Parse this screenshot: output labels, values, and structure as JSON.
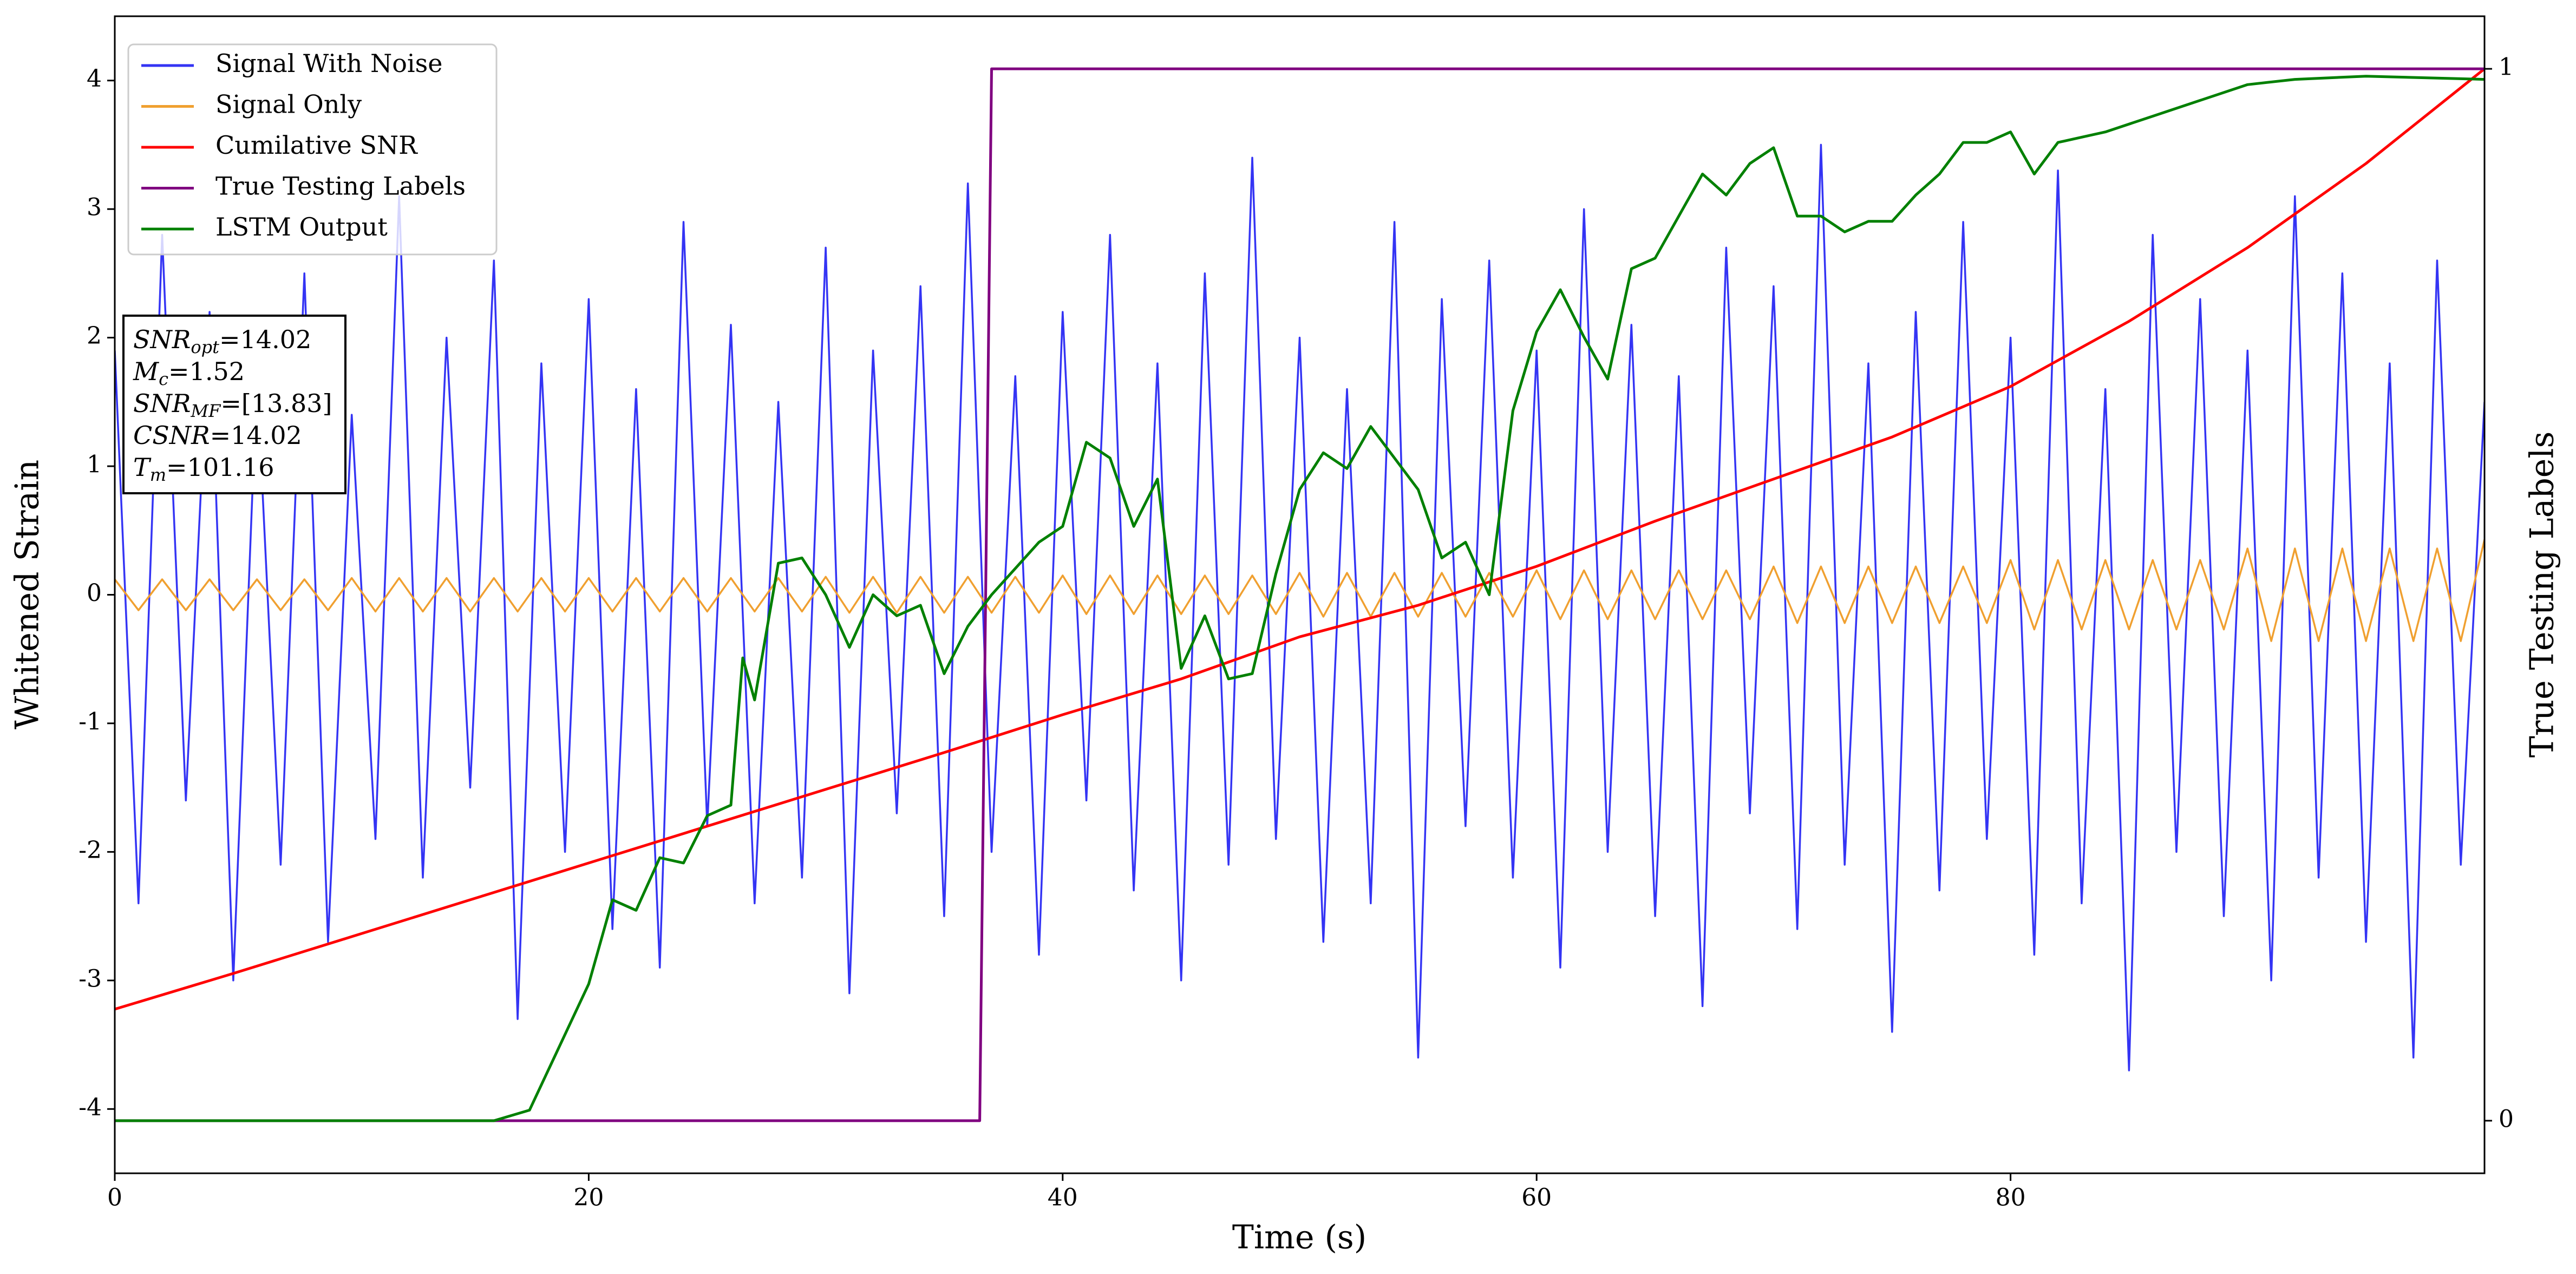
{
  "chart_data": {
    "type": "line",
    "xlabel": "Time (s)",
    "ylabel": "Whitened Strain",
    "y2label": "True Testing Labels",
    "xlim": [
      0,
      100
    ],
    "ylim": [
      -4.5,
      4.5
    ],
    "y2lim": [
      -0.05,
      1.05
    ],
    "xticks": [
      0,
      20,
      40,
      60,
      80
    ],
    "yticks": [
      -4,
      -3,
      -2,
      -1,
      0,
      1,
      2,
      3,
      4
    ],
    "y2ticks": [
      0,
      1
    ],
    "grid": false,
    "legend": "upper left",
    "x": [
      0,
      1,
      2,
      3,
      4,
      5,
      6,
      7,
      8,
      9,
      10,
      11,
      12,
      13,
      14,
      15,
      16,
      17,
      18,
      19,
      20,
      21,
      22,
      23,
      24,
      25,
      26,
      27,
      28,
      29,
      30,
      31,
      32,
      33,
      34,
      35,
      36,
      37,
      38,
      39,
      40,
      41,
      42,
      43,
      44,
      45,
      46,
      47,
      48,
      49,
      50,
      51,
      52,
      53,
      54,
      55,
      56,
      57,
      58,
      59,
      60,
      61,
      62,
      63,
      64,
      65,
      66,
      67,
      68,
      69,
      70,
      71,
      72,
      73,
      74,
      75,
      76,
      77,
      78,
      79,
      80,
      81,
      82,
      83,
      84,
      85,
      86,
      87,
      88,
      89,
      90,
      91,
      92,
      93,
      94,
      95,
      96,
      97,
      98,
      99,
      100
    ],
    "series": [
      {
        "name": "Signal With Noise",
        "color": "#3434f4",
        "values": [
          1.9,
          -2.4,
          2.8,
          -1.6,
          2.2,
          -3.0,
          1.7,
          -2.1,
          2.5,
          -2.7,
          1.4,
          -1.9,
          3.1,
          -2.2,
          2.0,
          -1.5,
          2.6,
          -3.3,
          1.8,
          -2.0,
          2.3,
          -2.6,
          1.6,
          -2.9,
          2.9,
          -1.8,
          2.1,
          -2.4,
          1.5,
          -2.2,
          2.7,
          -3.1,
          1.9,
          -1.7,
          2.4,
          -2.5,
          3.2,
          -2.0,
          1.7,
          -2.8,
          2.2,
          -1.6,
          2.8,
          -2.3,
          1.8,
          -3.0,
          2.5,
          -2.1,
          3.4,
          -1.9,
          2.0,
          -2.7,
          1.6,
          -2.4,
          2.9,
          -3.6,
          2.3,
          -1.8,
          2.6,
          -2.2,
          1.9,
          -2.9,
          3.0,
          -2.0,
          2.1,
          -2.5,
          1.7,
          -3.2,
          2.7,
          -1.7,
          2.4,
          -2.6,
          3.5,
          -2.1,
          1.8,
          -3.4,
          2.2,
          -2.3,
          2.9,
          -1.9,
          2.0,
          -2.8,
          3.3,
          -2.4,
          1.6,
          -3.7,
          2.8,
          -2.0,
          2.3,
          -2.5,
          1.9,
          -3.0,
          3.1,
          -2.2,
          2.5,
          -2.7,
          1.8,
          -3.6,
          2.6,
          -2.1,
          1.5
        ]
      },
      {
        "name": "Signal Only",
        "color": "#f0a030",
        "values": [
          0.12,
          -0.12,
          0.12,
          -0.12,
          0.12,
          -0.12,
          0.12,
          -0.12,
          0.12,
          -0.12,
          0.13,
          -0.13,
          0.13,
          -0.13,
          0.13,
          -0.13,
          0.13,
          -0.13,
          0.13,
          -0.13,
          0.13,
          -0.13,
          0.13,
          -0.13,
          0.13,
          -0.13,
          0.13,
          -0.13,
          0.13,
          -0.13,
          0.14,
          -0.14,
          0.14,
          -0.14,
          0.14,
          -0.14,
          0.14,
          -0.14,
          0.14,
          -0.14,
          0.15,
          -0.15,
          0.15,
          -0.15,
          0.15,
          -0.15,
          0.15,
          -0.15,
          0.15,
          -0.15,
          0.17,
          -0.17,
          0.17,
          -0.17,
          0.17,
          -0.17,
          0.17,
          -0.17,
          0.17,
          -0.17,
          0.19,
          -0.19,
          0.19,
          -0.19,
          0.19,
          -0.19,
          0.19,
          -0.19,
          0.19,
          -0.19,
          0.22,
          -0.22,
          0.22,
          -0.22,
          0.22,
          -0.22,
          0.22,
          -0.22,
          0.22,
          -0.22,
          0.27,
          -0.27,
          0.27,
          -0.27,
          0.27,
          -0.27,
          0.27,
          -0.27,
          0.27,
          -0.27,
          0.36,
          -0.36,
          0.36,
          -0.36,
          0.36,
          -0.36,
          0.36,
          -0.36,
          0.36,
          -0.36,
          0.43
        ]
      },
      {
        "name": "Cumilative SNR",
        "color": "red",
        "axis": "y2",
        "x": [
          0,
          5,
          10,
          15,
          20,
          25,
          30,
          35,
          40,
          45,
          50,
          55,
          60,
          65,
          70,
          75,
          80,
          85,
          90,
          95,
          100
        ],
        "values": [
          0.106,
          0.14,
          0.175,
          0.21,
          0.245,
          0.28,
          0.315,
          0.35,
          0.386,
          0.42,
          0.46,
          0.49,
          0.527,
          0.57,
          0.61,
          0.65,
          0.698,
          0.76,
          0.83,
          0.91,
          1.0
        ]
      },
      {
        "name": "True Testing Labels",
        "color": "purple",
        "axis": "y2",
        "x": [
          0,
          36.5,
          37,
          100
        ],
        "values": [
          0,
          0,
          1,
          1
        ]
      },
      {
        "name": "LSTM Output",
        "color": "green",
        "axis": "y2",
        "x": [
          0,
          16,
          17.5,
          20,
          21,
          22,
          23,
          24,
          25,
          26,
          26.5,
          27,
          28,
          29,
          30,
          31,
          32,
          33,
          34,
          35,
          36,
          37,
          38,
          39,
          40,
          41,
          42,
          43,
          44,
          45,
          46,
          47,
          48,
          49,
          50,
          51,
          52,
          53,
          54,
          55,
          56,
          57,
          58,
          59,
          60,
          61,
          62,
          63,
          64,
          65,
          66,
          67,
          68,
          69,
          70,
          71,
          72,
          73,
          74,
          75,
          76,
          77,
          78,
          79,
          80,
          81,
          82,
          84,
          86,
          88,
          90,
          92,
          95,
          100
        ],
        "values": [
          0,
          0,
          0.01,
          0.13,
          0.21,
          0.2,
          0.25,
          0.245,
          0.29,
          0.3,
          0.44,
          0.4,
          0.53,
          0.535,
          0.5,
          0.45,
          0.5,
          0.48,
          0.49,
          0.425,
          0.47,
          0.5,
          0.525,
          0.55,
          0.565,
          0.645,
          0.63,
          0.565,
          0.61,
          0.43,
          0.48,
          0.42,
          0.425,
          0.52,
          0.6,
          0.635,
          0.62,
          0.66,
          0.63,
          0.6,
          0.535,
          0.55,
          0.5,
          0.675,
          0.75,
          0.79,
          0.745,
          0.705,
          0.81,
          0.82,
          0.86,
          0.9,
          0.88,
          0.91,
          0.925,
          0.86,
          0.86,
          0.845,
          0.855,
          0.855,
          0.88,
          0.9,
          0.93,
          0.93,
          0.94,
          0.9,
          0.93,
          0.94,
          0.955,
          0.97,
          0.985,
          0.99,
          0.993,
          0.99
        ]
      }
    ],
    "annotations": [
      {
        "label": "SNR",
        "sub": "opt",
        "text": "=14.02"
      },
      {
        "label": "M",
        "sub": "c",
        "text": "=1.52"
      },
      {
        "label": "SNR",
        "sub": "MF",
        "text": "=[13.83]"
      },
      {
        "label": "CSNR",
        "text": "=14.02"
      },
      {
        "label": "T",
        "sub": "m",
        "text": "=101.16"
      }
    ]
  }
}
